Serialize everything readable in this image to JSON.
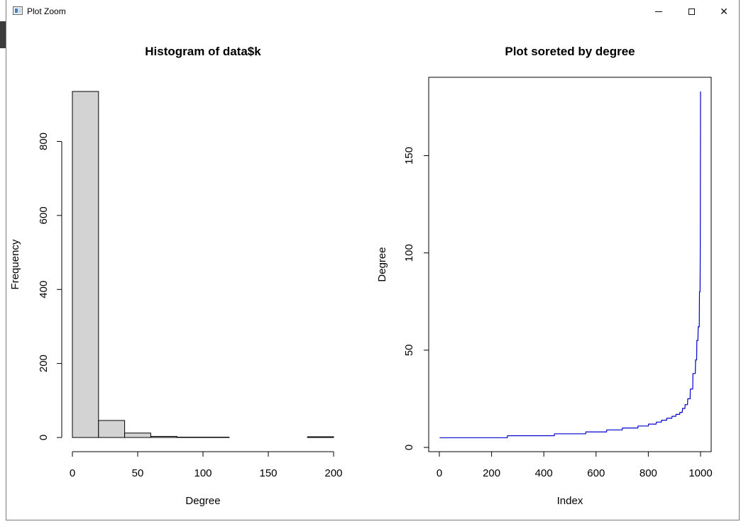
{
  "window": {
    "title": "Plot Zoom",
    "icons": {
      "app": "plot-window-icon",
      "minimize": "minimize-icon",
      "maximize": "maximize-icon",
      "close": "close-icon"
    }
  },
  "chart_data": [
    {
      "type": "bar",
      "title": "Histogram of data$k",
      "xlabel": "Degree",
      "ylabel": "Frequency",
      "bins": [
        [
          0,
          20
        ],
        [
          20,
          40
        ],
        [
          40,
          60
        ],
        [
          60,
          80
        ],
        [
          80,
          100
        ],
        [
          100,
          120
        ],
        [
          120,
          140
        ],
        [
          140,
          160
        ],
        [
          160,
          180
        ],
        [
          180,
          200
        ]
      ],
      "values": [
        935,
        46,
        12,
        3,
        1,
        1,
        0,
        0,
        0,
        2
      ],
      "xlim": [
        0,
        200
      ],
      "ylim": [
        0,
        935
      ],
      "xticks": [
        "0",
        "50",
        "100",
        "150",
        "200"
      ],
      "yticks": [
        "0",
        "200",
        "400",
        "600",
        "800"
      ],
      "bar_color": "#d3d3d3",
      "grid": false
    },
    {
      "type": "line",
      "title": "Plot soreted by degree",
      "xlabel": "Index",
      "ylabel": "Degree",
      "xlim": [
        0,
        1000
      ],
      "ylim": [
        5,
        183
      ],
      "x": [
        1,
        260,
        261,
        440,
        441,
        560,
        561,
        640,
        641,
        700,
        701,
        760,
        761,
        800,
        801,
        830,
        831,
        850,
        851,
        870,
        871,
        890,
        891,
        905,
        906,
        920,
        921,
        930,
        931,
        940,
        941,
        950,
        951,
        960,
        961,
        970,
        971,
        980,
        981,
        985,
        986,
        990,
        991,
        995,
        996,
        998,
        999,
        1000
      ],
      "y": [
        5,
        5,
        6,
        6,
        7,
        7,
        8,
        8,
        9,
        9,
        10,
        10,
        11,
        11,
        12,
        12,
        13,
        13,
        14,
        14,
        15,
        15,
        16,
        16,
        17,
        17,
        18,
        18,
        20,
        20,
        22,
        22,
        25,
        25,
        30,
        30,
        38,
        38,
        45,
        45,
        55,
        55,
        62,
        62,
        80,
        80,
        100,
        183
      ],
      "xticks": [
        "0",
        "200",
        "400",
        "600",
        "800",
        "1000"
      ],
      "yticks": [
        "0",
        "50",
        "100",
        "150"
      ],
      "line_color": "#0000cd",
      "grid": false
    }
  ]
}
